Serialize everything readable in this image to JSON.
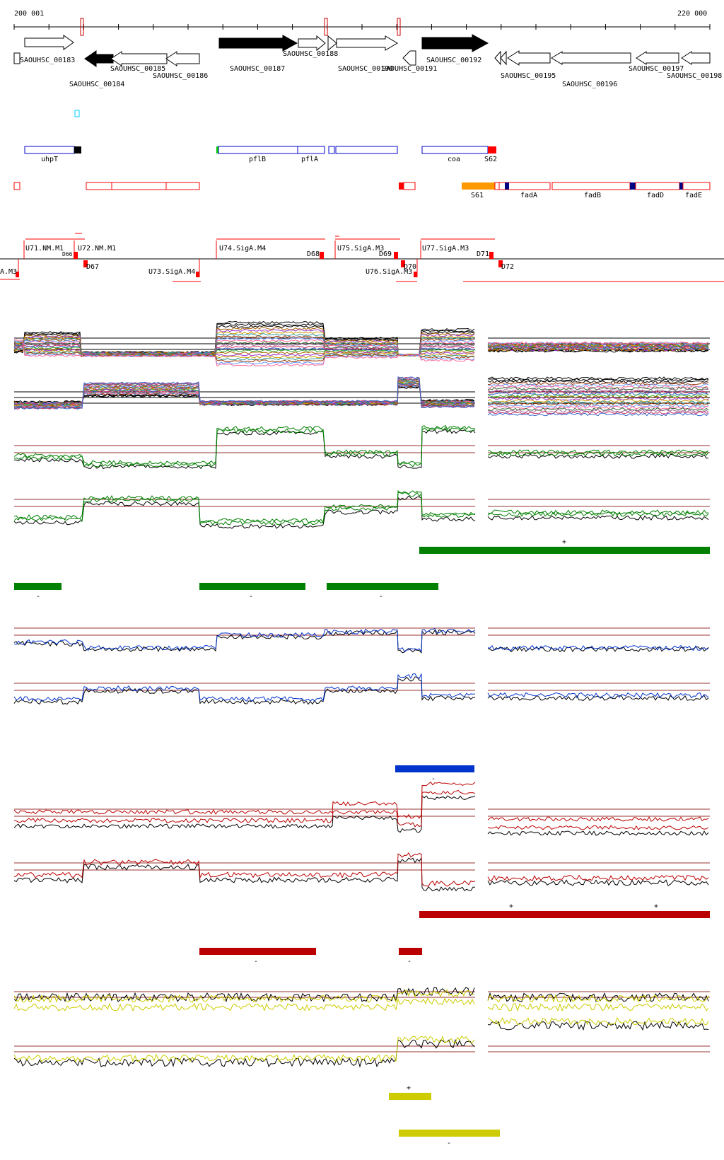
{
  "coord_start": "200 001",
  "coord_end": "220 000",
  "genes": [
    {
      "id": "g183",
      "label": "SAOUHSC_00183",
      "filled": false,
      "dir": "right"
    },
    {
      "id": "g184",
      "label": "SAOUHSC_00184",
      "filled": true,
      "dir": "left"
    },
    {
      "id": "g185",
      "label": "SAOUHSC_00185",
      "filled": false,
      "dir": "left"
    },
    {
      "id": "g186",
      "label": "SAOUHSC_00186",
      "filled": false,
      "dir": "left"
    },
    {
      "id": "g187",
      "label": "SAOUHSC_00187",
      "filled": true,
      "dir": "right"
    },
    {
      "id": "g188",
      "label": "SAOUHSC_00188",
      "filled": false,
      "dir": "right"
    },
    {
      "id": "g190",
      "label": "SAOUHSC_00190",
      "filled": false,
      "dir": "right"
    },
    {
      "id": "g191",
      "label": "SAOUHSC_00191",
      "filled": false,
      "dir": "left"
    },
    {
      "id": "g192",
      "label": "SAOUHSC_00192",
      "filled": true,
      "dir": "right"
    },
    {
      "id": "g195",
      "label": "SAOUHSC_00195",
      "filled": false,
      "dir": "left"
    },
    {
      "id": "g196",
      "label": "SAOUHSC_00196",
      "filled": false,
      "dir": "left"
    },
    {
      "id": "g197",
      "label": "SAOUHSC_00197",
      "filled": false,
      "dir": "left"
    },
    {
      "id": "g198",
      "label": "SAOUHSC_00198",
      "filled": false,
      "dir": "left"
    }
  ],
  "blue_features": [
    {
      "label": "uhpT"
    },
    {
      "label": "pflB"
    },
    {
      "label": "pflA"
    },
    {
      "label": "coa"
    },
    {
      "label": "S62"
    }
  ],
  "red_features": [
    {
      "label": "S61"
    },
    {
      "label": "fadA"
    },
    {
      "label": "fadB"
    },
    {
      "label": "fadD"
    },
    {
      "label": "fadE"
    }
  ],
  "tu_labels": [
    {
      "label": "U71.NM.M1"
    },
    {
      "label": "D66"
    },
    {
      "label": "U72.NM.M1"
    },
    {
      "label": "D67"
    },
    {
      "label": "A.M3"
    },
    {
      "label": "U73.SigA.M4"
    },
    {
      "label": "U74.SigA.M4"
    },
    {
      "label": "D68"
    },
    {
      "label": "U75.SigA.M3"
    },
    {
      "label": "D69"
    },
    {
      "label": "D70"
    },
    {
      "label": "U76.SigA.M3"
    },
    {
      "label": "U77.SigA.M3"
    },
    {
      "label": "D71"
    },
    {
      "label": "D72"
    }
  ],
  "condition_colors": {
    "multi": "#888888",
    "green": "#008000",
    "blue": "#0033cc",
    "red": "#bb0000",
    "yellow": "#cccc00"
  },
  "segment_signs": {
    "green_plus": "+",
    "green_minus": "-",
    "blue_minus": "-",
    "red_plus": "+",
    "red_minus": "-",
    "yellow_plus": "+",
    "yellow_minus": "-"
  }
}
